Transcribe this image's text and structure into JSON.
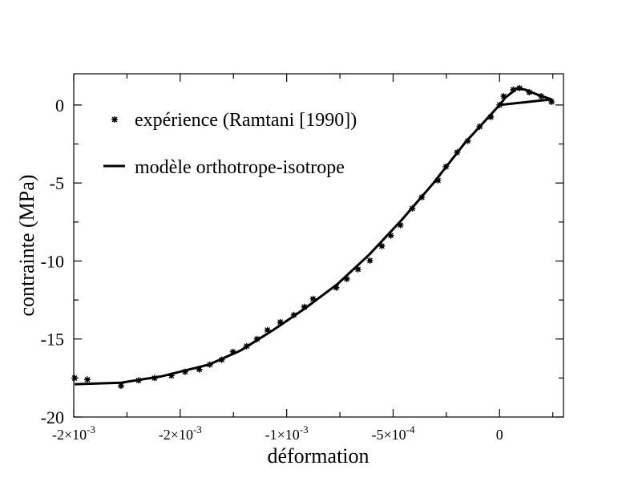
{
  "chart_data": {
    "type": "scatter",
    "title": "",
    "xlabel": "déformation",
    "ylabel": "contrainte (MPa)",
    "xlim": [
      -0.002,
      0.0003
    ],
    "ylim": [
      -20,
      2
    ],
    "x_ticks": [
      {
        "value": -0.002,
        "label_base": "-2×10",
        "label_exp": "-3"
      },
      {
        "value": -0.0015,
        "label_base": "-2×10",
        "label_exp": "-3"
      },
      {
        "value": -0.001,
        "label_base": "-1×10",
        "label_exp": "-3"
      },
      {
        "value": -0.0005,
        "label_base": "-5×10",
        "label_exp": "-4"
      },
      {
        "value": 0,
        "label_base": "0",
        "label_exp": ""
      }
    ],
    "y_ticks": [
      {
        "value": 0,
        "label": "0"
      },
      {
        "value": -5,
        "label": "-5"
      },
      {
        "value": -10,
        "label": "-10"
      },
      {
        "value": -15,
        "label": "-15"
      },
      {
        "value": -20,
        "label": "-20"
      }
    ],
    "grid": false,
    "legend_position": "top-left",
    "series": [
      {
        "name": "expérience (Ramtani [1990])",
        "kind": "markers",
        "x": [
          -0.001996,
          -0.001936,
          -0.001778,
          -0.001695,
          -0.00162,
          -0.001541,
          -0.001477,
          -0.00141,
          -0.001361,
          -0.001305,
          -0.001252,
          -0.001188,
          -0.001139,
          -0.00109,
          -0.00103,
          -0.000966,
          -0.000917,
          -0.000876,
          -0.000767,
          -0.000718,
          -0.000665,
          -0.000609,
          -0.000553,
          -0.000511,
          -0.000466,
          -0.00041,
          -0.000365,
          -0.000289,
          -0.000252,
          -0.000199,
          -0.00015,
          -9.4e-05,
          -4.1e-05,
          0,
          1.9e-05,
          6.4e-05,
          9.4e-05,
          0.000139,
          0.000195,
          0.000244
        ],
        "y": [
          -17.5,
          -17.6,
          -18.0,
          -17.65,
          -17.5,
          -17.35,
          -17.1,
          -16.95,
          -16.64,
          -16.33,
          -15.82,
          -15.46,
          -15.0,
          -14.43,
          -13.92,
          -13.46,
          -12.94,
          -12.43,
          -11.71,
          -11.15,
          -10.53,
          -9.97,
          -9.04,
          -8.37,
          -7.7,
          -6.63,
          -5.91,
          -4.83,
          -3.95,
          -3.03,
          -2.31,
          -1.39,
          -0.77,
          0,
          0.56,
          0.98,
          1.08,
          0.82,
          0.56,
          0.2
        ]
      },
      {
        "name": "modèle orthotrope-isotrope",
        "kind": "line",
        "x": [
          -0.001996,
          -0.001778,
          -0.00159,
          -0.001365,
          -0.001214,
          -0.001064,
          -0.000914,
          -0.000763,
          -0.000613,
          -0.000462,
          -0.000312,
          -0.000162,
          0,
          2.6e-05,
          8.3e-05,
          0.00012,
          0.000177,
          0.000244,
          0
        ],
        "y": [
          -17.9,
          -17.8,
          -17.4,
          -16.64,
          -15.72,
          -14.43,
          -13.04,
          -11.5,
          -9.6,
          -7.4,
          -5.03,
          -2.41,
          0,
          0.46,
          1.08,
          0.98,
          0.67,
          0.36,
          0
        ]
      }
    ]
  }
}
